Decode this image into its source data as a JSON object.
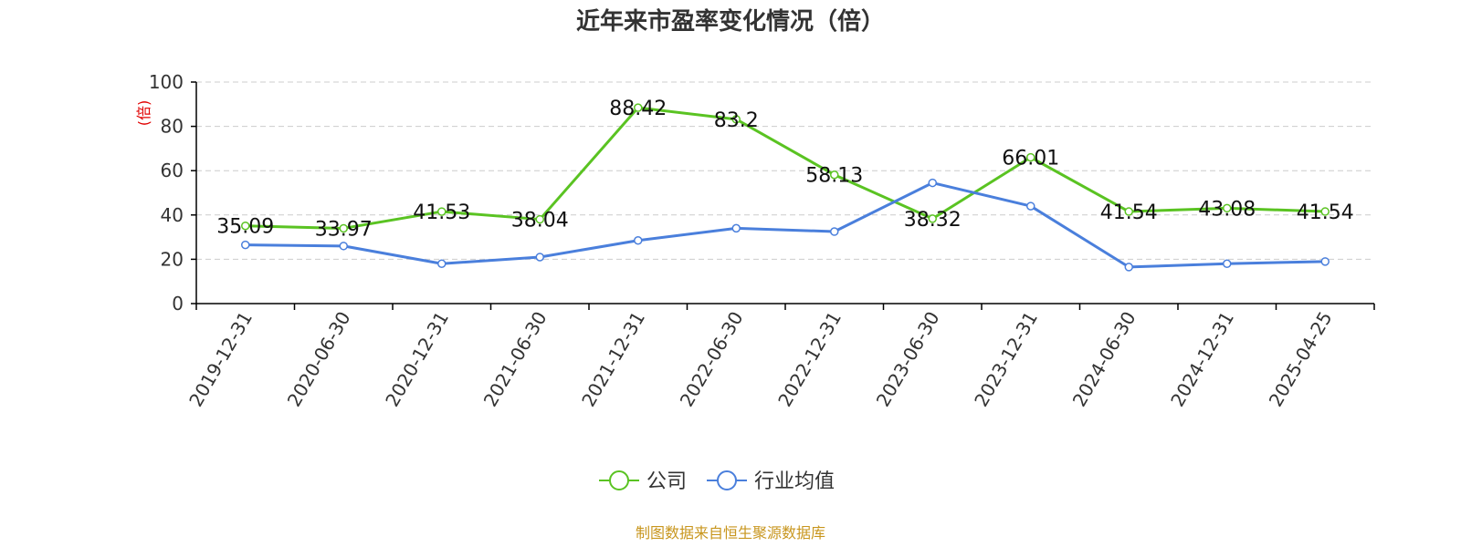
{
  "chart_data": {
    "type": "line",
    "title": "近年来市盈率变化情况（倍）",
    "ylabel": "(倍)",
    "xlabel": "",
    "ylim": [
      0,
      100
    ],
    "yticks": [
      0,
      20,
      40,
      60,
      80,
      100
    ],
    "grid": true,
    "legend_position": "bottom-center",
    "categories": [
      "2019-12-31",
      "2020-06-30",
      "2020-12-31",
      "2021-06-30",
      "2021-12-31",
      "2022-06-30",
      "2022-12-31",
      "2023-06-30",
      "2023-12-31",
      "2024-06-30",
      "2024-12-31",
      "2025-04-25"
    ],
    "series": [
      {
        "name": "公司",
        "color": "#5ac322",
        "show_labels": true,
        "values": [
          35.09,
          33.97,
          41.53,
          38.04,
          88.42,
          83.2,
          58.13,
          38.32,
          66.01,
          41.54,
          43.08,
          41.54
        ],
        "labels": [
          "35.09",
          "33.97",
          "41.53",
          "38.04",
          "88.42",
          "83.2",
          "58.13",
          "38.32",
          "66.01",
          "41.54",
          "43.08",
          "41.54"
        ]
      },
      {
        "name": "行业均值",
        "color": "#4a7fdc",
        "show_labels": false,
        "values": [
          26.5,
          26.0,
          18.0,
          21.0,
          28.5,
          34.0,
          32.5,
          54.5,
          44.0,
          16.5,
          18.0,
          19.0
        ]
      }
    ]
  },
  "source": "制图数据来自恒生聚源数据库"
}
